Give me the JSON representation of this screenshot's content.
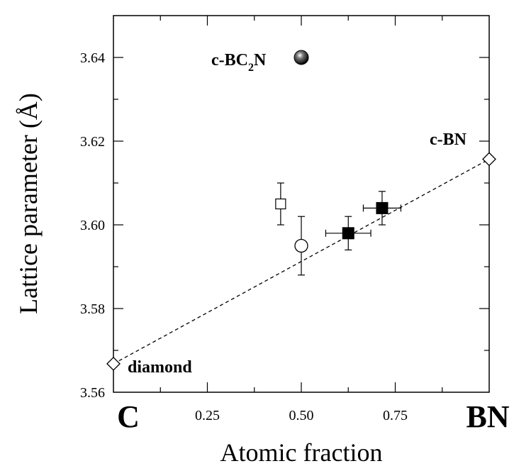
{
  "chart_data": {
    "type": "scatter",
    "xlabel": "Atomic fraction",
    "ylabel": "Lattice parameter (Å)",
    "xlim": [
      0,
      1
    ],
    "ylim": [
      3.56,
      3.65
    ],
    "x_ticks": [
      {
        "value": 0.25,
        "label": "0.25"
      },
      {
        "value": 0.5,
        "label": "0.50"
      },
      {
        "value": 0.75,
        "label": "0.75"
      }
    ],
    "x_end_labels": {
      "left": "C",
      "right": "BN"
    },
    "y_ticks": [
      {
        "value": 3.56,
        "label": "3.56"
      },
      {
        "value": 3.58,
        "label": "3.58"
      },
      {
        "value": 3.6,
        "label": "3.60"
      },
      {
        "value": 3.62,
        "label": "3.62"
      },
      {
        "value": 3.64,
        "label": "3.64"
      }
    ],
    "grid": false,
    "series": [
      {
        "marker": "diamond-open",
        "points": [
          {
            "x": 0.0,
            "y": 3.5668
          },
          {
            "x": 1.0,
            "y": 3.6157
          }
        ]
      },
      {
        "marker": "square-open",
        "points": [
          {
            "x": 0.445,
            "y": 3.605,
            "yerr": 0.005
          }
        ]
      },
      {
        "marker": "circle-open",
        "points": [
          {
            "x": 0.5,
            "y": 3.595,
            "yerr": 0.007
          }
        ]
      },
      {
        "marker": "square-filled",
        "points": [
          {
            "x": 0.625,
            "y": 3.598,
            "xerr": 0.06,
            "yerr": 0.004
          },
          {
            "x": 0.715,
            "y": 3.604,
            "xerr": 0.05,
            "yerr": 0.004
          }
        ]
      },
      {
        "marker": "sphere-filled",
        "points": [
          {
            "x": 0.5,
            "y": 3.64
          }
        ]
      }
    ],
    "fit_line": {
      "style": "dashed",
      "from": {
        "x": 0.0,
        "y": 3.5668
      },
      "to": {
        "x": 1.0,
        "y": 3.6157
      }
    },
    "annotations": {
      "diamond": "diamond",
      "cbn": "c-BN",
      "bc2n_main": "c-BC",
      "bc2n_sub": "2",
      "bc2n_end": "N"
    }
  }
}
